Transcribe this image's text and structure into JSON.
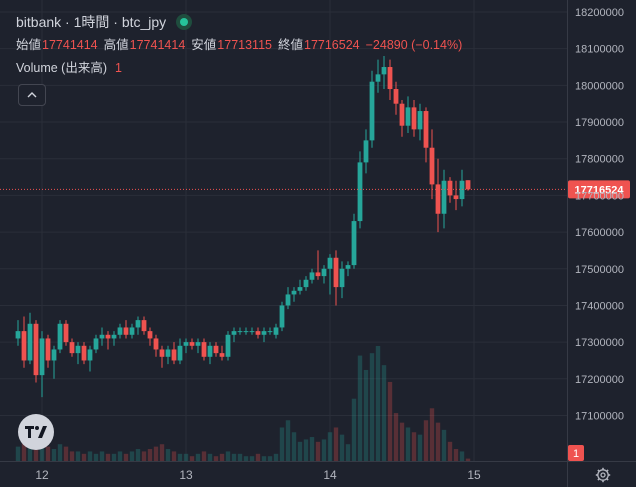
{
  "legend": {
    "title": "bitbank · 1時間 · btc_jpy",
    "open_label": "始値",
    "open": "17741414",
    "high_label": "高値",
    "high": "17741414",
    "low_label": "安値",
    "low": "17713115",
    "close_label": "終値",
    "close": "17716524",
    "change": "−24890 (−0.14%)",
    "volume_label": "Volume (出来高)",
    "volume_value": "1"
  },
  "colors": {
    "up": "#26a69a",
    "down": "#ef5350",
    "bg": "#1e222d",
    "grid": "#2a2e39"
  },
  "icons": {
    "collapse": "chevron-up-icon",
    "logo": "tradingview-logo-icon",
    "settings": "gear-icon"
  },
  "chart_data": {
    "type": "candlestick",
    "title": "bitbank · 1時間 · btc_jpy",
    "y_ticks": [
      17100000,
      17200000,
      17300000,
      17400000,
      17500000,
      17600000,
      17700000,
      17800000,
      17900000,
      18000000,
      18100000,
      18200000
    ],
    "y_tick_labels": [
      "17100000",
      "17200000",
      "17300000",
      "17400000",
      "17500000",
      "17600000",
      "17700000",
      "17800000",
      "17900000",
      "18000000",
      "18100000",
      "18200000"
    ],
    "ylim": [
      17025000,
      18200000
    ],
    "x_tick_labels": [
      "12",
      "13",
      "14",
      "15"
    ],
    "x_tick_index": [
      4,
      28,
      52,
      76
    ],
    "last_price": 17716524,
    "last_price_label": "17716524",
    "volume_last_label": "1",
    "volume_max": 48,
    "candles": [
      [
        17310000,
        17360000,
        17290000,
        17330000,
        6
      ],
      [
        17330000,
        17370000,
        17230000,
        17250000,
        9
      ],
      [
        17250000,
        17380000,
        17240000,
        17350000,
        8
      ],
      [
        17350000,
        17360000,
        17190000,
        17210000,
        10
      ],
      [
        17210000,
        17330000,
        17150000,
        17310000,
        8
      ],
      [
        17310000,
        17320000,
        17230000,
        17250000,
        6
      ],
      [
        17250000,
        17290000,
        17200000,
        17280000,
        5
      ],
      [
        17280000,
        17360000,
        17270000,
        17350000,
        7
      ],
      [
        17350000,
        17360000,
        17290000,
        17300000,
        6
      ],
      [
        17300000,
        17310000,
        17260000,
        17270000,
        4
      ],
      [
        17270000,
        17300000,
        17240000,
        17290000,
        4
      ],
      [
        17290000,
        17300000,
        17240000,
        17250000,
        3
      ],
      [
        17250000,
        17290000,
        17220000,
        17280000,
        4
      ],
      [
        17280000,
        17320000,
        17270000,
        17310000,
        3
      ],
      [
        17310000,
        17340000,
        17290000,
        17320000,
        4
      ],
      [
        17320000,
        17330000,
        17280000,
        17310000,
        3
      ],
      [
        17310000,
        17330000,
        17290000,
        17320000,
        3
      ],
      [
        17320000,
        17350000,
        17310000,
        17340000,
        4
      ],
      [
        17340000,
        17360000,
        17310000,
        17320000,
        3
      ],
      [
        17320000,
        17350000,
        17310000,
        17340000,
        4
      ],
      [
        17340000,
        17370000,
        17320000,
        17360000,
        5
      ],
      [
        17360000,
        17370000,
        17320000,
        17330000,
        4
      ],
      [
        17330000,
        17340000,
        17290000,
        17310000,
        5
      ],
      [
        17310000,
        17320000,
        17260000,
        17280000,
        6
      ],
      [
        17280000,
        17290000,
        17230000,
        17260000,
        7
      ],
      [
        17260000,
        17290000,
        17240000,
        17280000,
        5
      ],
      [
        17280000,
        17300000,
        17240000,
        17250000,
        4
      ],
      [
        17250000,
        17310000,
        17240000,
        17290000,
        3
      ],
      [
        17290000,
        17310000,
        17270000,
        17300000,
        3
      ],
      [
        17300000,
        17310000,
        17280000,
        17290000,
        2
      ],
      [
        17290000,
        17310000,
        17270000,
        17300000,
        3
      ],
      [
        17300000,
        17310000,
        17250000,
        17260000,
        4
      ],
      [
        17260000,
        17300000,
        17240000,
        17290000,
        3
      ],
      [
        17290000,
        17300000,
        17260000,
        17270000,
        2
      ],
      [
        17270000,
        17290000,
        17250000,
        17260000,
        3
      ],
      [
        17260000,
        17330000,
        17250000,
        17320000,
        4
      ],
      [
        17320000,
        17340000,
        17300000,
        17330000,
        3
      ],
      [
        17330000,
        17340000,
        17320000,
        17330000,
        3
      ],
      [
        17330000,
        17340000,
        17320000,
        17330000,
        2
      ],
      [
        17330000,
        17340000,
        17320000,
        17330000,
        2
      ],
      [
        17330000,
        17340000,
        17310000,
        17320000,
        3
      ],
      [
        17320000,
        17340000,
        17300000,
        17330000,
        2
      ],
      [
        17330000,
        17340000,
        17320000,
        17330000,
        2
      ],
      [
        17320000,
        17350000,
        17310000,
        17340000,
        3
      ],
      [
        17340000,
        17410000,
        17330000,
        17400000,
        14
      ],
      [
        17400000,
        17450000,
        17390000,
        17430000,
        17
      ],
      [
        17430000,
        17450000,
        17410000,
        17440000,
        12
      ],
      [
        17440000,
        17470000,
        17430000,
        17450000,
        8
      ],
      [
        17450000,
        17480000,
        17440000,
        17470000,
        9
      ],
      [
        17470000,
        17500000,
        17460000,
        17490000,
        10
      ],
      [
        17490000,
        17550000,
        17470000,
        17480000,
        8
      ],
      [
        17480000,
        17510000,
        17460000,
        17500000,
        9
      ],
      [
        17500000,
        17540000,
        17430000,
        17530000,
        12
      ],
      [
        17530000,
        17550000,
        17400000,
        17450000,
        14
      ],
      [
        17450000,
        17520000,
        17420000,
        17500000,
        11
      ],
      [
        17500000,
        17520000,
        17480000,
        17510000,
        7
      ],
      [
        17510000,
        17650000,
        17500000,
        17630000,
        26
      ],
      [
        17630000,
        17820000,
        17610000,
        17790000,
        44
      ],
      [
        17790000,
        17880000,
        17760000,
        17850000,
        38
      ],
      [
        17850000,
        18040000,
        17830000,
        18010000,
        45
      ],
      [
        18010000,
        18070000,
        17980000,
        18030000,
        48
      ],
      [
        18030000,
        18080000,
        17990000,
        18050000,
        40
      ],
      [
        18050000,
        18070000,
        17960000,
        17990000,
        33
      ],
      [
        17990000,
        18010000,
        17920000,
        17950000,
        20
      ],
      [
        17950000,
        17960000,
        17860000,
        17890000,
        16
      ],
      [
        17890000,
        17970000,
        17870000,
        17940000,
        14
      ],
      [
        17940000,
        17960000,
        17860000,
        17880000,
        12
      ],
      [
        17880000,
        17950000,
        17850000,
        17930000,
        11
      ],
      [
        17930000,
        17940000,
        17790000,
        17830000,
        17
      ],
      [
        17830000,
        17880000,
        17690000,
        17730000,
        22
      ],
      [
        17730000,
        17800000,
        17600000,
        17650000,
        16
      ],
      [
        17650000,
        17770000,
        17610000,
        17740000,
        13
      ],
      [
        17740000,
        17750000,
        17680000,
        17700000,
        8
      ],
      [
        17700000,
        17740000,
        17660000,
        17690000,
        5
      ],
      [
        17690000,
        17770000,
        17670000,
        17740000,
        4
      ],
      [
        17741414,
        17741414,
        17713115,
        17716524,
        1
      ]
    ]
  }
}
